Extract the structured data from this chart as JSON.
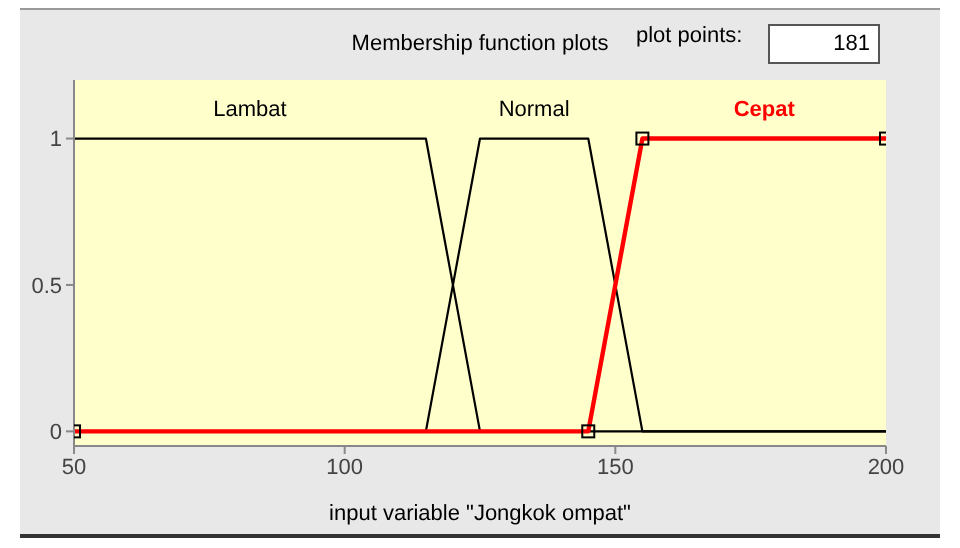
{
  "chart_data": {
    "type": "line",
    "title": "Membership function plots",
    "xlabel": "input variable \"Jongkok ompat\"",
    "annotations": [
      "plot points:",
      "181"
    ],
    "xlim": [
      50,
      200
    ],
    "xticks": [
      50,
      100,
      150,
      200
    ],
    "ylim": [
      -0.05,
      1.2
    ],
    "yticks": [
      0,
      0.5,
      1
    ],
    "series": [
      {
        "name": "Lambat",
        "color": "#000000",
        "x": [
          50,
          115,
          125,
          200
        ],
        "values": [
          1,
          1,
          0,
          0
        ],
        "marker": "none"
      },
      {
        "name": "Normal",
        "color": "#000000",
        "x": [
          50,
          115,
          125,
          145,
          155,
          200
        ],
        "values": [
          0,
          0,
          1,
          1,
          0,
          0
        ],
        "marker": "none"
      },
      {
        "name": "Cepat",
        "color": "#ff0000",
        "x": [
          50,
          145,
          155,
          200
        ],
        "values": [
          0,
          0,
          1,
          1
        ],
        "marker": "square"
      }
    ]
  }
}
